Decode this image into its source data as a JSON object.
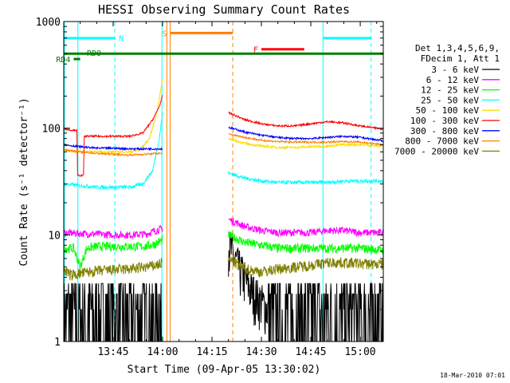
{
  "chart_data": {
    "type": "line",
    "title": "HESSI Observing Summary Count Rates",
    "xlabel": "Start Time (09-Apr-05 13:30:02)",
    "ylabel": "Count Rate (s⁻¹ detector⁻¹)",
    "ylog": true,
    "ylim": [
      1,
      1000
    ],
    "xlim_minutes_after_1330": [
      0,
      97
    ],
    "x_ticks": [
      {
        "label": "13:45",
        "min": 15
      },
      {
        "label": "14:00",
        "min": 30
      },
      {
        "label": "14:15",
        "min": 45
      },
      {
        "label": "14:30",
        "min": 60
      },
      {
        "label": "14:45",
        "min": 75
      },
      {
        "label": "15:00",
        "min": 90
      }
    ],
    "y_ticks": [
      {
        "label": "1",
        "value": 1
      },
      {
        "label": "10",
        "value": 10
      },
      {
        "label": "100",
        "value": 100
      },
      {
        "label": "1000",
        "value": 1000
      }
    ],
    "legend_header": [
      "Det 1,3,4,5,6,9,",
      "FDecim 1, Att 1"
    ],
    "legend_position": "right",
    "series": [
      {
        "name": "3 - 6 keV",
        "color": "#000000",
        "seg1": [
          [
            0,
            1.8
          ],
          [
            5,
            1.8
          ],
          [
            10,
            1.8
          ],
          [
            15,
            1.8
          ],
          [
            20,
            1.8
          ],
          [
            25,
            1.8
          ],
          [
            28,
            2.0
          ],
          [
            30,
            2.0
          ]
        ],
        "seg2": [
          [
            50,
            8
          ],
          [
            53,
            5
          ],
          [
            57,
            3
          ],
          [
            62,
            2
          ],
          [
            66,
            1.8
          ],
          [
            70,
            1.8
          ],
          [
            75,
            1.8
          ],
          [
            80,
            1.8
          ],
          [
            85,
            1.8
          ],
          [
            90,
            1.8
          ],
          [
            97,
            1.8
          ]
        ],
        "noise": 0.55
      },
      {
        "name": "6 - 12 keV",
        "color": "#ff00ff",
        "seg1": [
          [
            0,
            10.5
          ],
          [
            5,
            10.3
          ],
          [
            10,
            10.2
          ],
          [
            15,
            10
          ],
          [
            20,
            10
          ],
          [
            25,
            10.2
          ],
          [
            28,
            11
          ],
          [
            30,
            11.5
          ]
        ],
        "seg2": [
          [
            50,
            14
          ],
          [
            55,
            12
          ],
          [
            60,
            11
          ],
          [
            65,
            10.5
          ],
          [
            70,
            10.5
          ],
          [
            75,
            10.5
          ],
          [
            80,
            11
          ],
          [
            85,
            11
          ],
          [
            90,
            10.5
          ],
          [
            97,
            10.5
          ]
        ],
        "noise": 0.08
      },
      {
        "name": "12 - 25 keV",
        "color": "#00ff00",
        "seg1": [
          [
            0,
            7.5
          ],
          [
            3,
            7.5
          ],
          [
            5,
            5
          ],
          [
            7,
            7.5
          ],
          [
            10,
            7.8
          ],
          [
            15,
            7.8
          ],
          [
            20,
            7.8
          ],
          [
            25,
            7.8
          ],
          [
            28,
            8.3
          ],
          [
            30,
            9
          ]
        ],
        "seg2": [
          [
            50,
            10
          ],
          [
            55,
            8.5
          ],
          [
            60,
            8
          ],
          [
            65,
            7.5
          ],
          [
            70,
            7.5
          ],
          [
            75,
            7.5
          ],
          [
            80,
            7.5
          ],
          [
            85,
            7.5
          ],
          [
            90,
            7.5
          ],
          [
            97,
            7.2
          ]
        ],
        "noise": 0.1
      },
      {
        "name": "25 - 50 keV",
        "color": "#00ffff",
        "seg1": [
          [
            0,
            30
          ],
          [
            5,
            29
          ],
          [
            10,
            28
          ],
          [
            15,
            28
          ],
          [
            20,
            28
          ],
          [
            24,
            30
          ],
          [
            27,
            40
          ],
          [
            29,
            80
          ],
          [
            30,
            140
          ]
        ],
        "seg2": [
          [
            50,
            38
          ],
          [
            55,
            34
          ],
          [
            60,
            32
          ],
          [
            65,
            31
          ],
          [
            70,
            31
          ],
          [
            75,
            31
          ],
          [
            80,
            31
          ],
          [
            85,
            32
          ],
          [
            90,
            32
          ],
          [
            97,
            32
          ]
        ],
        "noise": 0.04
      },
      {
        "name": "50 - 100 keV",
        "color": "#ffdd00",
        "seg1": [
          [
            0,
            62
          ],
          [
            5,
            60
          ],
          [
            10,
            60
          ],
          [
            15,
            60
          ],
          [
            20,
            60
          ],
          [
            23,
            62
          ],
          [
            26,
            80
          ],
          [
            28,
            130
          ],
          [
            29,
            190
          ],
          [
            30,
            290
          ]
        ],
        "seg2": [
          [
            50,
            80
          ],
          [
            55,
            72
          ],
          [
            60,
            68
          ],
          [
            65,
            66
          ],
          [
            70,
            66
          ],
          [
            75,
            67
          ],
          [
            80,
            68
          ],
          [
            85,
            70
          ],
          [
            90,
            70
          ],
          [
            97,
            68
          ]
        ],
        "noise": 0.025
      },
      {
        "name": "100 - 300 keV",
        "color": "#ff0000",
        "seg1": [
          [
            0,
            100
          ],
          [
            2,
            96
          ],
          [
            4,
            96
          ],
          [
            4.2,
            36
          ],
          [
            6,
            36
          ],
          [
            6.2,
            84
          ],
          [
            10,
            84
          ],
          [
            15,
            84
          ],
          [
            20,
            84
          ],
          [
            24,
            90
          ],
          [
            27,
            120
          ],
          [
            29,
            160
          ],
          [
            30,
            200
          ]
        ],
        "seg2": [
          [
            50,
            140
          ],
          [
            55,
            120
          ],
          [
            60,
            110
          ],
          [
            65,
            105
          ],
          [
            70,
            105
          ],
          [
            75,
            110
          ],
          [
            80,
            115
          ],
          [
            85,
            112
          ],
          [
            90,
            105
          ],
          [
            97,
            98
          ]
        ],
        "noise": 0.02
      },
      {
        "name": "300 - 800 keV",
        "color": "#0000ff",
        "seg1": [
          [
            0,
            70
          ],
          [
            5,
            67
          ],
          [
            10,
            65
          ],
          [
            15,
            65
          ],
          [
            20,
            64
          ],
          [
            25,
            64
          ],
          [
            28,
            64
          ],
          [
            30,
            64
          ]
        ],
        "seg2": [
          [
            50,
            102
          ],
          [
            55,
            92
          ],
          [
            60,
            86
          ],
          [
            65,
            82
          ],
          [
            70,
            80
          ],
          [
            75,
            80
          ],
          [
            80,
            82
          ],
          [
            85,
            84
          ],
          [
            90,
            82
          ],
          [
            97,
            76
          ]
        ],
        "noise": 0.02
      },
      {
        "name": "800 - 7000 keV",
        "color": "#ff8000",
        "seg1": [
          [
            0,
            63
          ],
          [
            5,
            60
          ],
          [
            10,
            58
          ],
          [
            15,
            57
          ],
          [
            20,
            56
          ],
          [
            25,
            57
          ],
          [
            28,
            58
          ],
          [
            30,
            58
          ]
        ],
        "seg2": [
          [
            50,
            88
          ],
          [
            55,
            82
          ],
          [
            60,
            77
          ],
          [
            65,
            75
          ],
          [
            70,
            74
          ],
          [
            75,
            74
          ],
          [
            80,
            74
          ],
          [
            85,
            75
          ],
          [
            90,
            74
          ],
          [
            97,
            70
          ]
        ],
        "noise": 0.02
      },
      {
        "name": "7000 - 20000 keV",
        "color": "#808000",
        "seg1": [
          [
            0,
            4.8
          ],
          [
            2,
            4.2
          ],
          [
            4,
            4.3
          ],
          [
            8,
            4.5
          ],
          [
            10,
            4.6
          ],
          [
            15,
            4.7
          ],
          [
            20,
            4.8
          ],
          [
            25,
            5
          ],
          [
            28,
            5.2
          ],
          [
            30,
            5.5
          ]
        ],
        "seg2": [
          [
            50,
            6
          ],
          [
            55,
            4.8
          ],
          [
            60,
            4.5
          ],
          [
            65,
            4.8
          ],
          [
            70,
            5
          ],
          [
            75,
            5.2
          ],
          [
            80,
            5.5
          ],
          [
            85,
            5.5
          ],
          [
            90,
            5.4
          ],
          [
            97,
            5.3
          ]
        ],
        "noise": 0.12
      }
    ],
    "annotations": {
      "N": {
        "label": "N",
        "color": "#00ffff"
      },
      "S": {
        "label": "S",
        "color": "#ff8000"
      },
      "F": {
        "label": "F",
        "color": "#ff0000"
      },
      "RD4": {
        "label": "RD4",
        "color": "#008000"
      },
      "RDO": {
        "label": "RDO",
        "color": "#008000"
      }
    },
    "vlines": [
      {
        "min": 0.2,
        "color": "#00ffff",
        "dash": false
      },
      {
        "min": 4.3,
        "color": "#00ffff",
        "dash": false
      },
      {
        "min": 15.5,
        "color": "#00ffff",
        "dash": true
      },
      {
        "min": 29.8,
        "color": "#00ffff",
        "dash": false
      },
      {
        "min": 31.3,
        "color": "#ff8000",
        "dash": false
      },
      {
        "min": 32.3,
        "color": "#ff8000",
        "dash": false
      },
      {
        "min": 51.3,
        "color": "#ff8000",
        "dash": true
      },
      {
        "min": 78.7,
        "color": "#00ffff",
        "dash": false
      },
      {
        "min": 93.3,
        "color": "#00ffff",
        "dash": true
      }
    ],
    "hbars": [
      {
        "from": 0.2,
        "to": 15.5,
        "value": 700,
        "color": "#00ffff",
        "label_key": "N",
        "label_side": "right"
      },
      {
        "from": 78.7,
        "to": 93.3,
        "value": 700,
        "color": "#00ffff"
      },
      {
        "from": 32.3,
        "to": 51.3,
        "value": 780,
        "color": "#ff8000",
        "label_key": "S",
        "label_side": "left"
      },
      {
        "from": 60,
        "to": 73,
        "value": 550,
        "color": "#ff0000",
        "label_key": "F",
        "label_side": "left"
      },
      {
        "from": 0.2,
        "to": 97,
        "value": 500,
        "color": "#008000",
        "thick": 3
      },
      {
        "from": 3,
        "to": 5,
        "value": 445,
        "color": "#008000",
        "label_key": "RD4",
        "label_side": "left"
      }
    ]
  },
  "footer": {
    "timestamp": "18-Mar-2010 07:01"
  }
}
